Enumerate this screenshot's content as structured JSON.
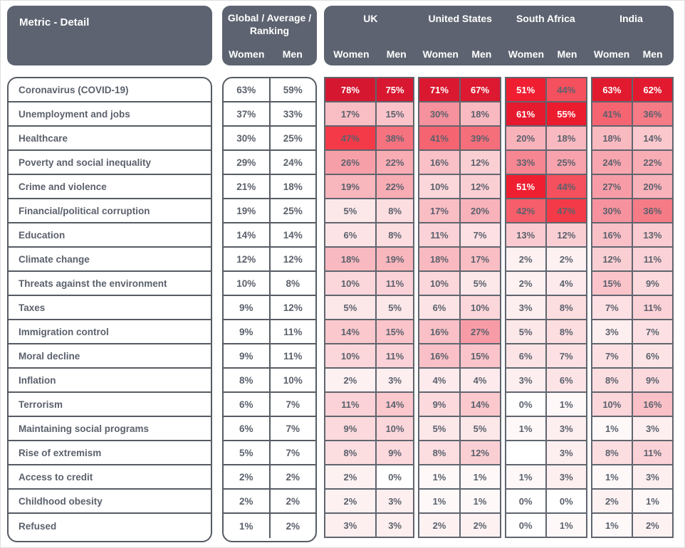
{
  "colors": {
    "header_bg": "#5d6370",
    "box_border": "#565b63",
    "grid_line": "#60656e",
    "text_dark": "#5b616c",
    "text_light": "#ffffff",
    "heat_scale": [
      [
        0,
        "#ffffff"
      ],
      [
        2,
        "#fdf1f2"
      ],
      [
        10,
        "#fbd6da"
      ],
      [
        20,
        "#f8b2ba"
      ],
      [
        30,
        "#f6929d"
      ],
      [
        40,
        "#f56b77"
      ],
      [
        46,
        "#f54350"
      ],
      [
        50,
        "#f01e31"
      ],
      [
        58,
        "#e91b2e"
      ],
      [
        66,
        "#dd1930"
      ],
      [
        80,
        "#d41730"
      ]
    ],
    "white_text_threshold": 50
  },
  "chart_data": {
    "type": "heatmap",
    "row_header": "Metric - Detail",
    "global_header": "Global / Average / Ranking",
    "subcolumns": [
      "Women",
      "Men"
    ],
    "countries": [
      "UK",
      "United States",
      "South Africa",
      "India"
    ],
    "country_keys": [
      "uk",
      "us",
      "sa",
      "india"
    ],
    "unit": "%",
    "rows": [
      {
        "metric": "Coronavirus (COVID-19)",
        "global": [
          63,
          59
        ],
        "uk": [
          78,
          75
        ],
        "us": [
          71,
          67
        ],
        "sa": [
          51,
          44
        ],
        "india": [
          63,
          62
        ]
      },
      {
        "metric": "Unemployment and jobs",
        "global": [
          37,
          33
        ],
        "uk": [
          17,
          15
        ],
        "us": [
          30,
          18
        ],
        "sa": [
          61,
          55
        ],
        "india": [
          41,
          36
        ]
      },
      {
        "metric": "Healthcare",
        "global": [
          30,
          25
        ],
        "uk": [
          47,
          38
        ],
        "us": [
          41,
          39
        ],
        "sa": [
          20,
          18
        ],
        "india": [
          18,
          14
        ]
      },
      {
        "metric": "Poverty and social inequality",
        "global": [
          29,
          24
        ],
        "uk": [
          26,
          22
        ],
        "us": [
          16,
          12
        ],
        "sa": [
          33,
          25
        ],
        "india": [
          24,
          22
        ]
      },
      {
        "metric": "Crime and violence",
        "global": [
          21,
          18
        ],
        "uk": [
          19,
          22
        ],
        "us": [
          10,
          12
        ],
        "sa": [
          51,
          44
        ],
        "india": [
          27,
          20
        ]
      },
      {
        "metric": "Financial/political corruption",
        "global": [
          19,
          25
        ],
        "uk": [
          5,
          8
        ],
        "us": [
          17,
          20
        ],
        "sa": [
          42,
          47
        ],
        "india": [
          30,
          36
        ]
      },
      {
        "metric": "Education",
        "global": [
          14,
          14
        ],
        "uk": [
          6,
          8
        ],
        "us": [
          11,
          7
        ],
        "sa": [
          13,
          12
        ],
        "india": [
          16,
          13
        ]
      },
      {
        "metric": "Climate change",
        "global": [
          12,
          12
        ],
        "uk": [
          18,
          19
        ],
        "us": [
          18,
          17
        ],
        "sa": [
          2,
          2
        ],
        "india": [
          12,
          11
        ]
      },
      {
        "metric": "Threats against the environment",
        "global": [
          10,
          8
        ],
        "uk": [
          10,
          11
        ],
        "us": [
          10,
          5
        ],
        "sa": [
          2,
          4
        ],
        "india": [
          15,
          9
        ]
      },
      {
        "metric": "Taxes",
        "global": [
          9,
          12
        ],
        "uk": [
          5,
          5
        ],
        "us": [
          6,
          10
        ],
        "sa": [
          3,
          8
        ],
        "india": [
          7,
          11
        ]
      },
      {
        "metric": "Immigration control",
        "global": [
          9,
          11
        ],
        "uk": [
          14,
          15
        ],
        "us": [
          16,
          27
        ],
        "sa": [
          5,
          8
        ],
        "india": [
          3,
          7
        ]
      },
      {
        "metric": "Moral decline",
        "global": [
          9,
          11
        ],
        "uk": [
          10,
          11
        ],
        "us": [
          16,
          15
        ],
        "sa": [
          6,
          7
        ],
        "india": [
          7,
          6
        ]
      },
      {
        "metric": "Inflation",
        "global": [
          8,
          10
        ],
        "uk": [
          2,
          3
        ],
        "us": [
          4,
          4
        ],
        "sa": [
          3,
          6
        ],
        "india": [
          8,
          9
        ]
      },
      {
        "metric": "Terrorism",
        "global": [
          6,
          7
        ],
        "uk": [
          11,
          14
        ],
        "us": [
          9,
          14
        ],
        "sa": [
          0,
          1
        ],
        "india": [
          10,
          16
        ]
      },
      {
        "metric": "Maintaining social programs",
        "global": [
          6,
          7
        ],
        "uk": [
          9,
          10
        ],
        "us": [
          5,
          5
        ],
        "sa": [
          1,
          3
        ],
        "india": [
          1,
          3
        ]
      },
      {
        "metric": "Rise of extremism",
        "global": [
          5,
          7
        ],
        "uk": [
          8,
          9
        ],
        "us": [
          8,
          12
        ],
        "sa": [
          null,
          3
        ],
        "india": [
          8,
          11
        ]
      },
      {
        "metric": "Access to credit",
        "global": [
          2,
          2
        ],
        "uk": [
          2,
          0
        ],
        "us": [
          1,
          1
        ],
        "sa": [
          1,
          3
        ],
        "india": [
          1,
          3
        ]
      },
      {
        "metric": "Childhood obesity",
        "global": [
          2,
          2
        ],
        "uk": [
          2,
          3
        ],
        "us": [
          1,
          1
        ],
        "sa": [
          0,
          0
        ],
        "india": [
          2,
          1
        ]
      },
      {
        "metric": "Refused",
        "global": [
          1,
          2
        ],
        "uk": [
          3,
          3
        ],
        "us": [
          2,
          2
        ],
        "sa": [
          0,
          1
        ],
        "india": [
          1,
          2
        ]
      }
    ]
  }
}
